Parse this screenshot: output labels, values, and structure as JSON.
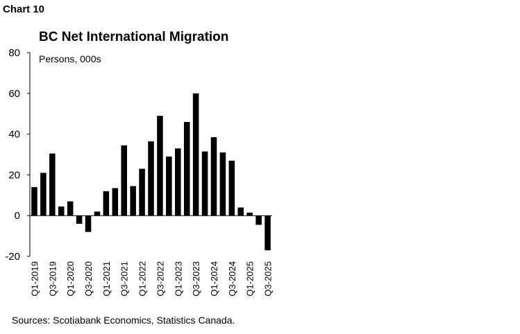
{
  "header": {
    "chart_number": "Chart 10"
  },
  "chart_data": {
    "type": "bar",
    "title": "BC Net International Migration",
    "ylabel": "Persons, 000s",
    "xlabel": "",
    "ylim": [
      -20,
      80
    ],
    "yticks": [
      -20,
      0,
      20,
      40,
      60,
      80
    ],
    "grid": false,
    "categories": [
      "Q1-2019",
      "Q2-2019",
      "Q3-2019",
      "Q4-2019",
      "Q1-2020",
      "Q2-2020",
      "Q3-2020",
      "Q4-2020",
      "Q1-2021",
      "Q2-2021",
      "Q3-2021",
      "Q4-2021",
      "Q1-2022",
      "Q2-2022",
      "Q3-2022",
      "Q4-2022",
      "Q1-2023",
      "Q2-2023",
      "Q3-2023",
      "Q4-2023",
      "Q1-2024",
      "Q2-2024",
      "Q3-2024",
      "Q4-2024",
      "Q1-2025",
      "Q2-2025",
      "Q3-2025"
    ],
    "tick_labels": [
      "Q1-2019",
      "Q3-2019",
      "Q1-2020",
      "Q3-2020",
      "Q1-2021",
      "Q3-2021",
      "Q1-2022",
      "Q3-2022",
      "Q1-2023",
      "Q3-2023",
      "Q1-2024",
      "Q3-2024",
      "Q1-2025",
      "Q3-2025"
    ],
    "values": [
      14,
      21,
      30.5,
      4.5,
      7,
      -4,
      -8,
      2,
      12,
      13.5,
      34.5,
      14.5,
      23,
      36.5,
      49,
      29,
      33,
      46,
      60,
      31.5,
      38.5,
      31,
      27,
      4,
      1.5,
      -4.5,
      -17
    ],
    "bar_color": "#000000"
  },
  "footer": {
    "source": "Sources: Scotiabank Economics, Statistics Canada."
  }
}
